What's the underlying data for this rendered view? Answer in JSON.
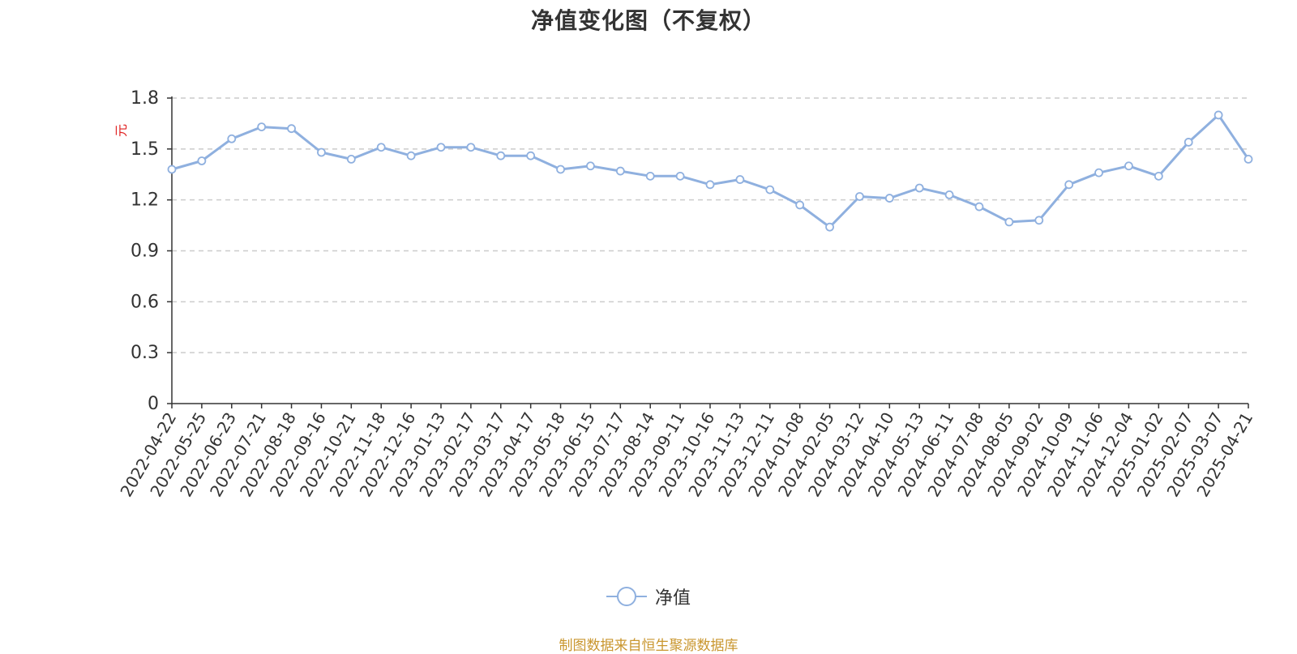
{
  "chart_data": {
    "type": "line",
    "title": "净值变化图（不复权）",
    "ylabel": "元",
    "ylim": [
      0,
      1.8
    ],
    "yticks": [
      "0",
      "0.3",
      "0.6",
      "0.9",
      "1.2",
      "1.5",
      "1.8"
    ],
    "grid": "horizontal-dashed",
    "legend_position": "bottom-center",
    "xticks": [
      "2022-04-22",
      "2022-05-25",
      "2022-06-23",
      "2022-07-21",
      "2022-08-18",
      "2022-09-16",
      "2022-10-21",
      "2022-11-18",
      "2022-12-16",
      "2023-01-13",
      "2023-02-17",
      "2023-03-17",
      "2023-04-17",
      "2023-05-18",
      "2023-06-15",
      "2023-07-17",
      "2023-08-14",
      "2023-09-11",
      "2023-10-16",
      "2023-11-13",
      "2023-12-11",
      "2024-01-08",
      "2024-02-05",
      "2024-03-12",
      "2024-04-10",
      "2024-05-13",
      "2024-06-11",
      "2024-07-08",
      "2024-08-05",
      "2024-09-02",
      "2024-10-09",
      "2024-11-06",
      "2024-12-04",
      "2025-01-02",
      "2025-02-07",
      "2025-03-07",
      "2025-04-21"
    ],
    "series": [
      {
        "name": "净值",
        "color": "#8fb0df",
        "x": [
          "2022-04-22",
          "2022-05-25",
          "2022-06-23",
          "2022-07-21",
          "2022-08-18",
          "2022-09-16",
          "2022-10-21",
          "2022-11-18",
          "2022-12-16",
          "2023-01-13",
          "2023-02-17",
          "2023-03-17",
          "2023-04-17",
          "2023-05-18",
          "2023-06-15",
          "2023-07-17",
          "2023-08-14",
          "2023-09-11",
          "2023-10-16",
          "2023-11-13",
          "2023-12-11",
          "2024-01-08",
          "2024-02-05",
          "2024-03-12",
          "2024-04-10",
          "2024-05-13",
          "2024-06-11",
          "2024-07-08",
          "2024-08-05",
          "2024-09-02",
          "2024-10-09",
          "2024-11-06",
          "2024-12-04",
          "2025-01-02",
          "2025-02-07",
          "2025-03-07",
          "2025-04-21"
        ],
        "values": [
          1.38,
          1.43,
          1.56,
          1.63,
          1.62,
          1.48,
          1.44,
          1.51,
          1.46,
          1.51,
          1.51,
          1.46,
          1.46,
          1.38,
          1.4,
          1.37,
          1.34,
          1.34,
          1.29,
          1.32,
          1.26,
          1.17,
          1.04,
          1.22,
          1.21,
          1.27,
          1.23,
          1.16,
          1.07,
          1.08,
          1.29,
          1.36,
          1.4,
          1.34,
          1.54,
          1.7,
          1.44
        ]
      }
    ]
  },
  "legend_label": "净值",
  "source_note": "制图数据来自恒生聚源数据库"
}
